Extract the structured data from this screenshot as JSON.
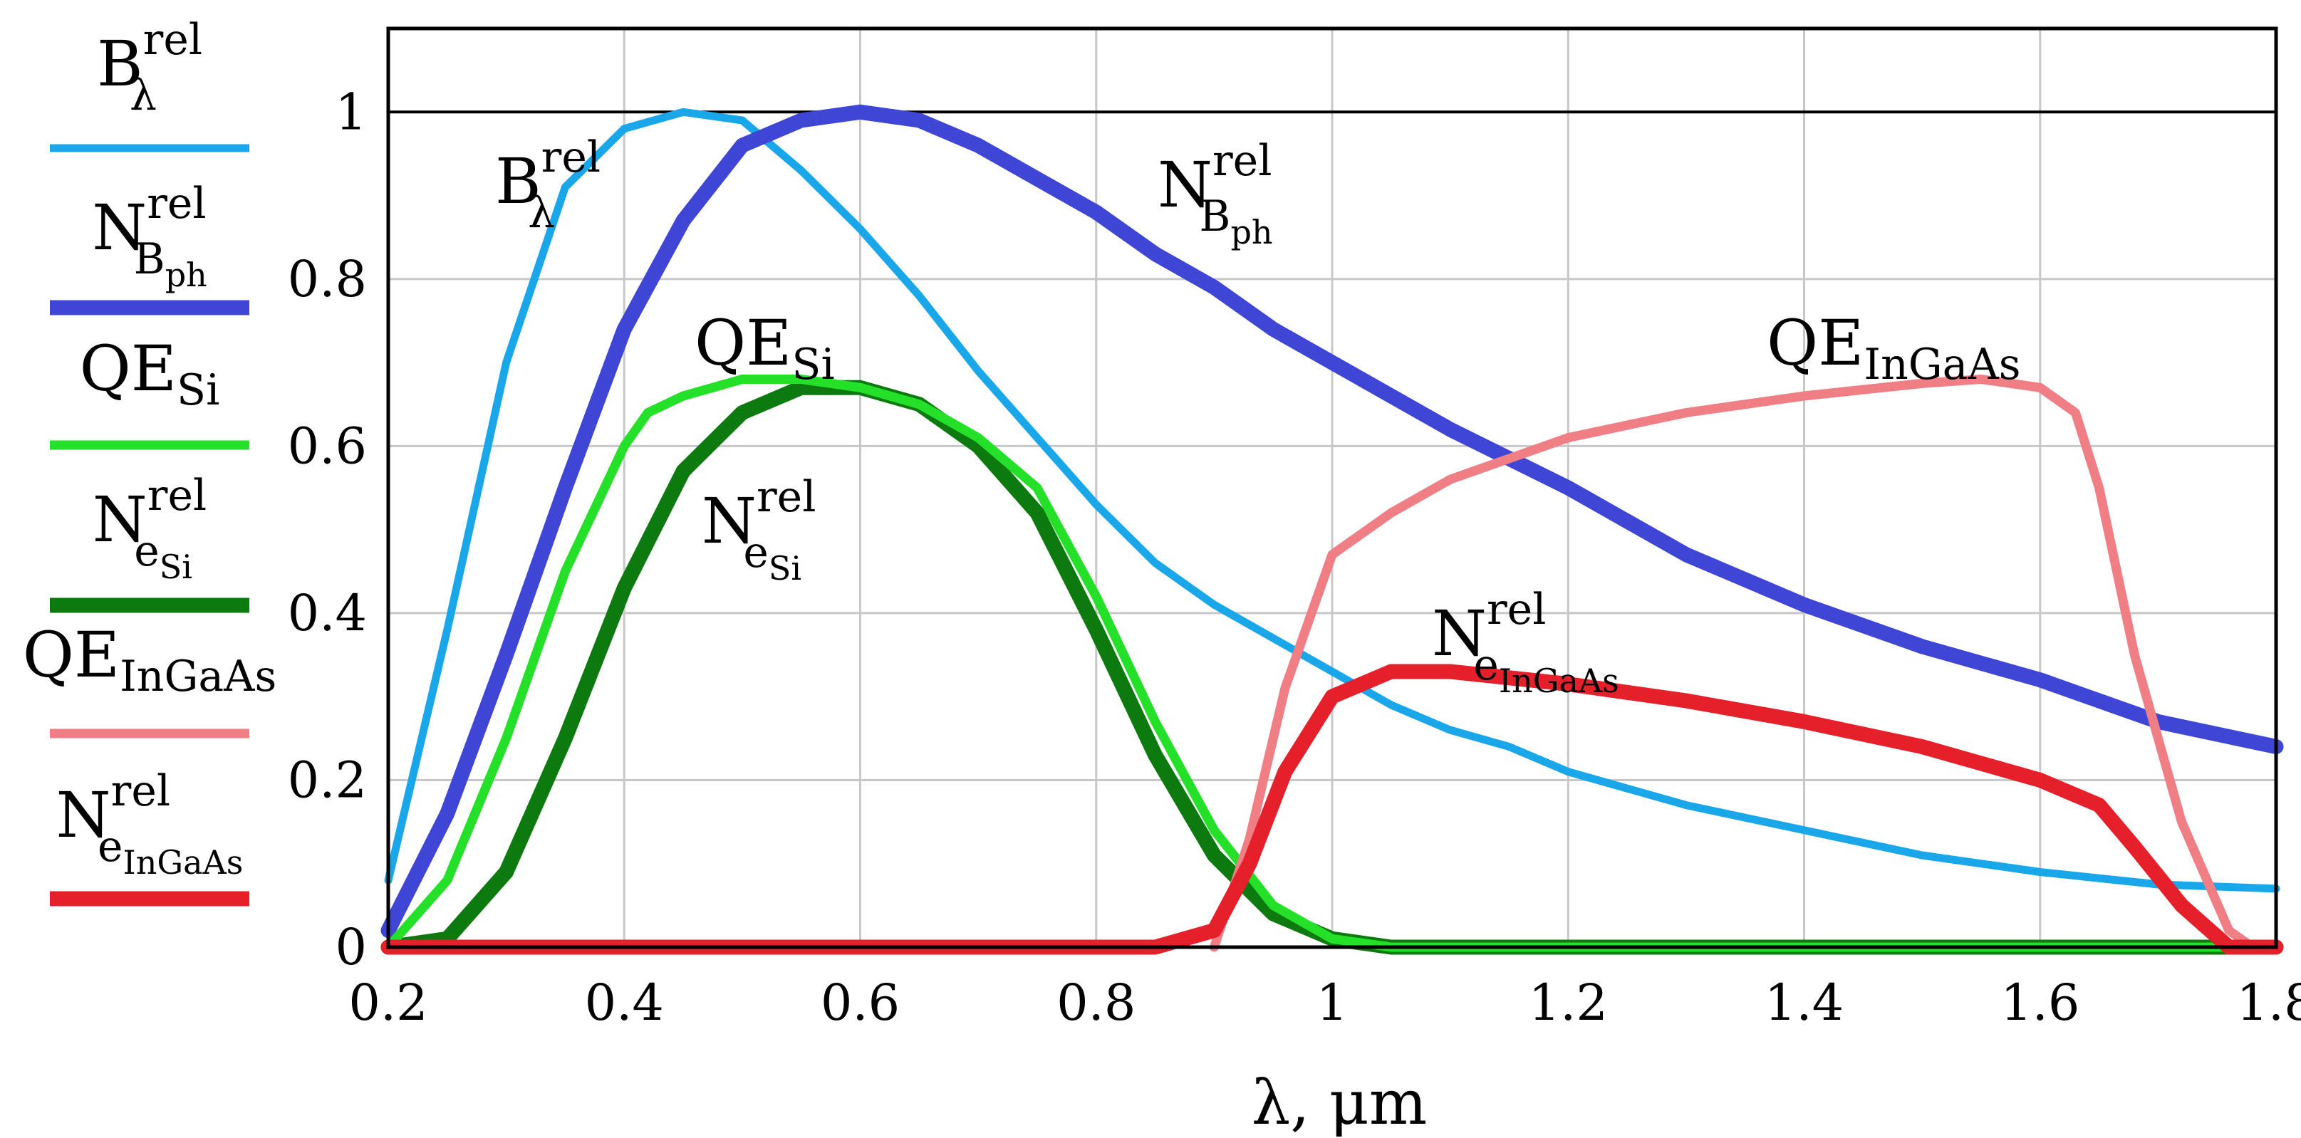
{
  "chart_data": {
    "type": "line",
    "xlabel": "λ, μm",
    "ylabel": "",
    "xlim": [
      0.2,
      1.8
    ],
    "ylim": [
      0,
      1.1
    ],
    "x_ticks": [
      "0.2",
      "0.4",
      "0.6",
      "0.8",
      "1",
      "1.2",
      "1.4",
      "1.6",
      "1.8"
    ],
    "y_ticks": [
      "0",
      "0.2",
      "0.4",
      "0.6",
      "0.8",
      "1"
    ],
    "reference_line_y": 1,
    "grid": true,
    "legend_position": "left",
    "series": [
      {
        "id": "B",
        "name": "B_λ^rel",
        "label": {
          "main": "B",
          "sup": "rel",
          "sub": "λ",
          "sub2": ""
        },
        "color": "#1aa7ea",
        "x": [
          0.2,
          0.25,
          0.3,
          0.35,
          0.4,
          0.45,
          0.5,
          0.55,
          0.6,
          0.65,
          0.7,
          0.75,
          0.8,
          0.85,
          0.9,
          0.95,
          1.0,
          1.05,
          1.1,
          1.15,
          1.2,
          1.3,
          1.4,
          1.5,
          1.6,
          1.7,
          1.8
        ],
        "y": [
          0.08,
          0.38,
          0.7,
          0.91,
          0.98,
          1.0,
          0.99,
          0.93,
          0.86,
          0.78,
          0.69,
          0.61,
          0.53,
          0.46,
          0.41,
          0.37,
          0.33,
          0.29,
          0.26,
          0.24,
          0.21,
          0.17,
          0.14,
          0.11,
          0.09,
          0.075,
          0.07
        ]
      },
      {
        "id": "Nph",
        "name": "N_Bph^rel",
        "label": {
          "main": "N",
          "sup": "rel",
          "sub": "B",
          "sub2": "ph"
        },
        "color": "#3f45d4",
        "x": [
          0.2,
          0.25,
          0.3,
          0.35,
          0.4,
          0.45,
          0.5,
          0.55,
          0.6,
          0.65,
          0.7,
          0.75,
          0.8,
          0.85,
          0.9,
          0.95,
          1.0,
          1.1,
          1.2,
          1.3,
          1.4,
          1.5,
          1.6,
          1.7,
          1.8
        ],
        "y": [
          0.02,
          0.16,
          0.35,
          0.55,
          0.74,
          0.87,
          0.96,
          0.99,
          1.0,
          0.99,
          0.96,
          0.92,
          0.88,
          0.83,
          0.79,
          0.74,
          0.7,
          0.62,
          0.55,
          0.47,
          0.41,
          0.36,
          0.32,
          0.27,
          0.24
        ]
      },
      {
        "id": "QESi",
        "name": "QE_Si",
        "label": {
          "main": "QE",
          "sup": "",
          "sub": "Si",
          "sub2": ""
        },
        "color": "#25e028",
        "x": [
          0.2,
          0.25,
          0.3,
          0.35,
          0.4,
          0.42,
          0.45,
          0.5,
          0.55,
          0.6,
          0.65,
          0.7,
          0.75,
          0.8,
          0.85,
          0.9,
          0.95,
          1.0,
          1.05,
          1.1,
          1.8
        ],
        "y": [
          0.0,
          0.08,
          0.25,
          0.45,
          0.6,
          0.64,
          0.66,
          0.68,
          0.68,
          0.67,
          0.65,
          0.61,
          0.55,
          0.42,
          0.27,
          0.14,
          0.05,
          0.01,
          0.0,
          0.0,
          0.0
        ]
      },
      {
        "id": "NeSi",
        "name": "N_eSi^rel",
        "label": {
          "main": "N",
          "sup": "rel",
          "sub": "e",
          "sub2": "Si"
        },
        "color": "#0d7a0f",
        "x": [
          0.2,
          0.25,
          0.3,
          0.35,
          0.4,
          0.45,
          0.5,
          0.55,
          0.6,
          0.65,
          0.7,
          0.75,
          0.8,
          0.85,
          0.9,
          0.95,
          1.0,
          1.05,
          1.1,
          1.8
        ],
        "y": [
          0.0,
          0.01,
          0.09,
          0.25,
          0.43,
          0.57,
          0.64,
          0.67,
          0.67,
          0.65,
          0.6,
          0.52,
          0.38,
          0.23,
          0.11,
          0.04,
          0.01,
          0.0,
          0.0,
          0.0
        ]
      },
      {
        "id": "QEInGaAs",
        "name": "QE_InGaAs",
        "label": {
          "main": "QE",
          "sup": "",
          "sub": "InGaAs",
          "sub2": ""
        },
        "color": "#f07e85",
        "x": [
          0.9,
          0.93,
          0.96,
          1.0,
          1.05,
          1.1,
          1.2,
          1.3,
          1.4,
          1.5,
          1.55,
          1.6,
          1.63,
          1.65,
          1.68,
          1.72,
          1.76,
          1.78
        ],
        "y": [
          0.0,
          0.13,
          0.31,
          0.47,
          0.52,
          0.56,
          0.61,
          0.64,
          0.66,
          0.675,
          0.68,
          0.67,
          0.64,
          0.55,
          0.35,
          0.15,
          0.02,
          0.0
        ]
      },
      {
        "id": "NeInGaAs",
        "name": "N_eInGaAs^rel",
        "label": {
          "main": "N",
          "sup": "rel",
          "sub": "e",
          "sub2": "InGaAs"
        },
        "color": "#e5202b",
        "x": [
          0.2,
          0.85,
          0.9,
          0.93,
          0.96,
          1.0,
          1.05,
          1.1,
          1.2,
          1.3,
          1.4,
          1.5,
          1.6,
          1.65,
          1.68,
          1.72,
          1.76,
          1.8
        ],
        "y": [
          0.0,
          0.0,
          0.02,
          0.1,
          0.21,
          0.3,
          0.33,
          0.33,
          0.315,
          0.295,
          0.27,
          0.24,
          0.2,
          0.17,
          0.12,
          0.05,
          0.0,
          0.0
        ]
      }
    ]
  }
}
